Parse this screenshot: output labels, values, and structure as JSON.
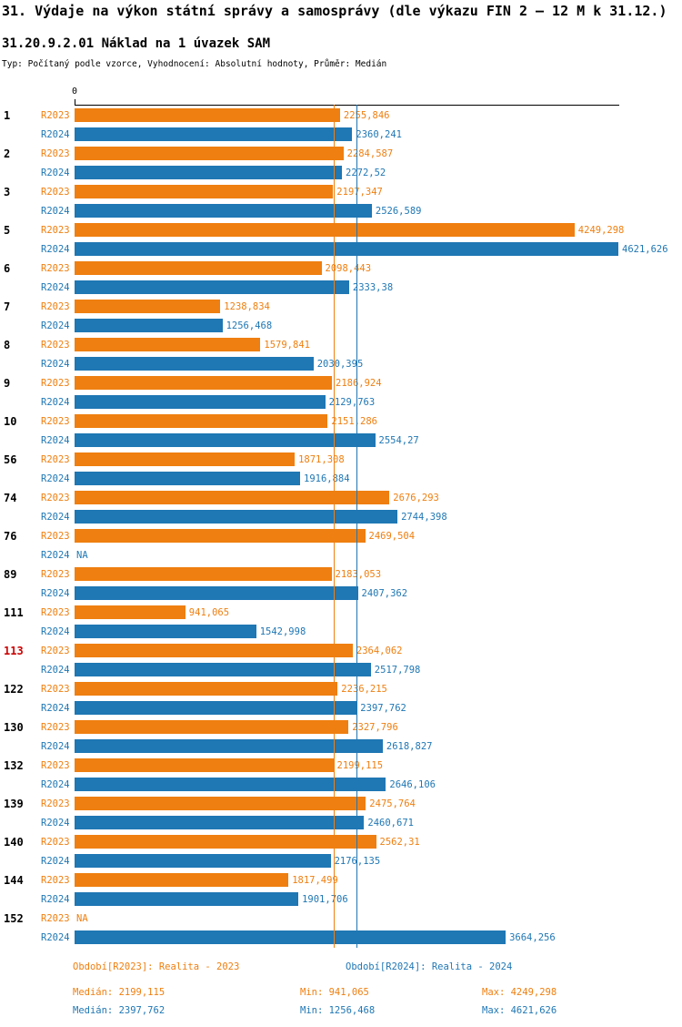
{
  "header": {
    "title": "31. Výdaje na výkon státní správy a samosprávy (dle výkazu FIN 2 – 12 M k 31.12.)",
    "subtitle": "31.20.9.2.01 Náklad na 1 úvazek SAM",
    "meta": "Typ: Počítaný podle vzorce, Vyhodnocení: Absolutní hodnoty, Průměr: Medián"
  },
  "colors": {
    "series_r2023": "#ef7f10",
    "series_r2024": "#1f77b4",
    "highlight_id": "#cc0000",
    "axis": "#000000"
  },
  "chart_data": {
    "type": "bar",
    "orientation": "horizontal",
    "title": "31.20.9.2.01 Náklad na 1 úvazek SAM",
    "x_axis": {
      "zero_label": "0",
      "min": 0,
      "max": 4621.626,
      "grid": false
    },
    "legend_position": "bottom",
    "series": [
      {
        "name": "R2023",
        "color": "#ef7f10",
        "median": 2199.115,
        "legend": "Období[R2023]: Realita - 2023"
      },
      {
        "name": "R2024",
        "color": "#1f77b4",
        "median": 2397.762,
        "legend": "Období[R2024]: Realita - 2024"
      }
    ],
    "highlight_ids": [
      "113"
    ],
    "groups": [
      {
        "id": "1",
        "values": [
          "2255,846",
          "2360,241"
        ]
      },
      {
        "id": "2",
        "values": [
          "2284,587",
          "2272,52"
        ]
      },
      {
        "id": "3",
        "values": [
          "2197,347",
          "2526,589"
        ]
      },
      {
        "id": "5",
        "values": [
          "4249,298",
          "4621,626"
        ]
      },
      {
        "id": "6",
        "values": [
          "2098,443",
          "2333,38"
        ]
      },
      {
        "id": "7",
        "values": [
          "1238,834",
          "1256,468"
        ]
      },
      {
        "id": "8",
        "values": [
          "1579,841",
          "2030,395"
        ]
      },
      {
        "id": "9",
        "values": [
          "2186,924",
          "2129,763"
        ]
      },
      {
        "id": "10",
        "values": [
          "2151,286",
          "2554,27"
        ]
      },
      {
        "id": "56",
        "values": [
          "1871,308",
          "1916,884"
        ]
      },
      {
        "id": "74",
        "values": [
          "2676,293",
          "2744,398"
        ]
      },
      {
        "id": "76",
        "values": [
          "2469,504",
          "NA"
        ]
      },
      {
        "id": "89",
        "values": [
          "2183,053",
          "2407,362"
        ]
      },
      {
        "id": "111",
        "values": [
          "941,065",
          "1542,998"
        ]
      },
      {
        "id": "113",
        "values": [
          "2364,062",
          "2517,798"
        ]
      },
      {
        "id": "122",
        "values": [
          "2236,215",
          "2397,762"
        ]
      },
      {
        "id": "130",
        "values": [
          "2327,796",
          "2618,827"
        ]
      },
      {
        "id": "132",
        "values": [
          "2199,115",
          "2646,106"
        ]
      },
      {
        "id": "139",
        "values": [
          "2475,764",
          "2460,671"
        ]
      },
      {
        "id": "140",
        "values": [
          "2562,31",
          "2176,135"
        ]
      },
      {
        "id": "144",
        "values": [
          "1817,499",
          "1901,706"
        ]
      },
      {
        "id": "152",
        "values": [
          "NA",
          "3664,256"
        ]
      }
    ]
  },
  "stats": {
    "r2023": {
      "median": "Medián: 2199,115",
      "min": "Min: 941,065",
      "max": "Max: 4249,298"
    },
    "r2024": {
      "median": "Medián: 2397,762",
      "min": "Min: 1256,468",
      "max": "Max: 4621,626"
    }
  }
}
